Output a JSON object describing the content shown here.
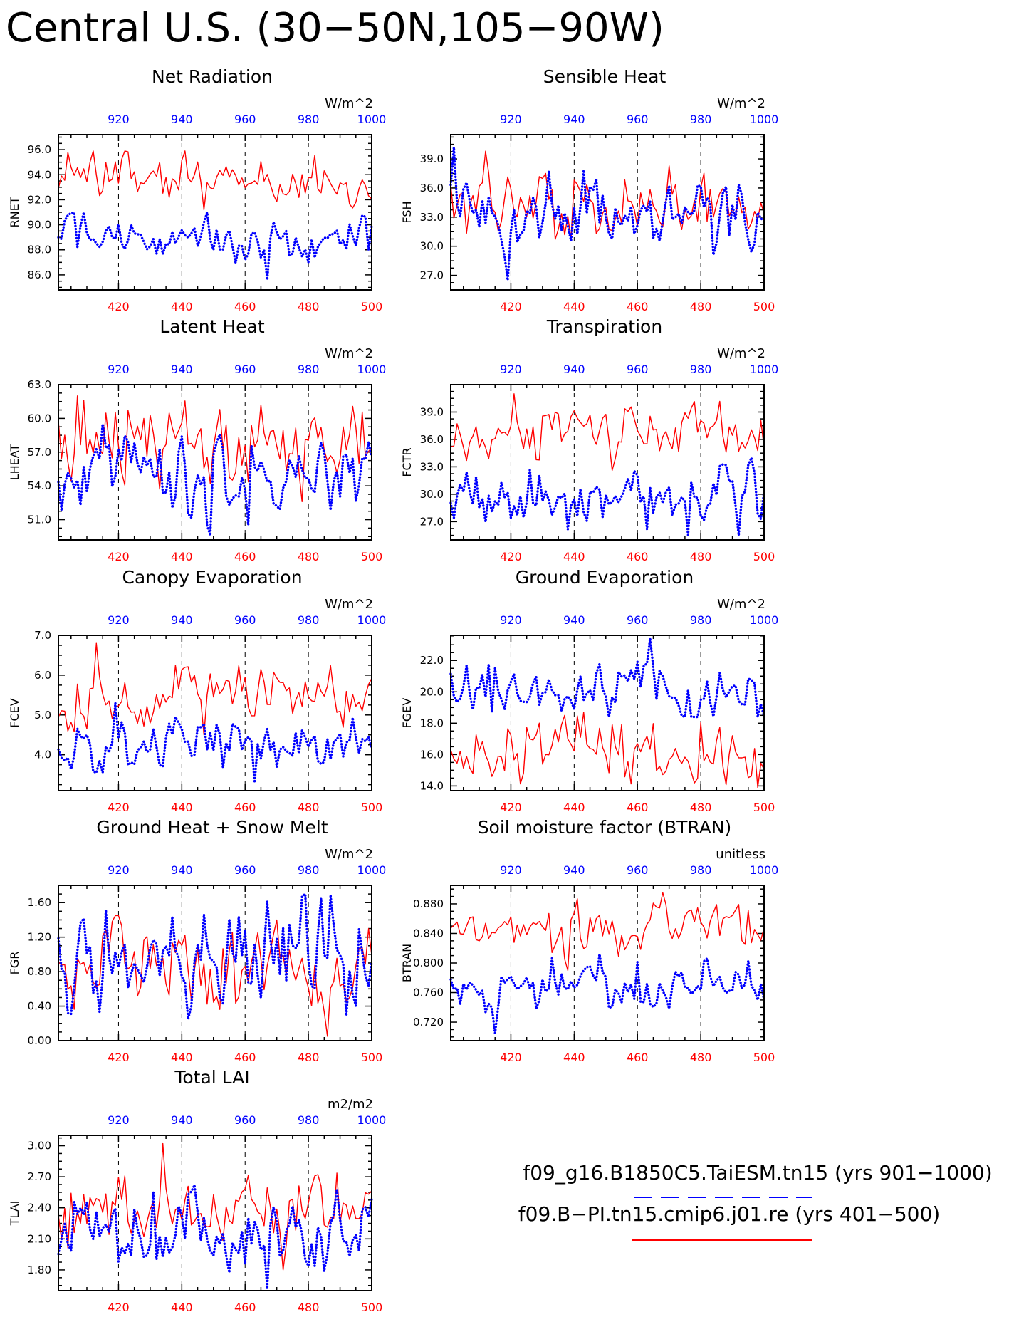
{
  "figure": {
    "title": "Central U.S. (30−50N,105−90W)"
  },
  "colors": {
    "case1": "#0000ff",
    "case2": "#ff0000"
  },
  "legend": {
    "case1_label": "f09_g16.B1850C5.TaiESM.tn15 (yrs 901−1000)",
    "case2_label": "f09.B−PI.tn15.cmip6.j01.re (yrs 401−500)"
  },
  "chart_data": [
    {
      "type": "line",
      "title": "Net Radiation",
      "units": "W/m^2",
      "ylabel": "RNET",
      "ylim": [
        84.8,
        97.2
      ],
      "yticks": [
        86.0,
        88.0,
        90.0,
        92.0,
        94.0,
        96.0
      ],
      "ytick_decimals": 1,
      "x_bottom": {
        "range": [
          401,
          500
        ],
        "ticks": [
          420,
          440,
          460,
          480,
          500
        ]
      },
      "x_top": {
        "range": [
          901,
          1000
        ],
        "ticks": [
          920,
          940,
          960,
          980,
          1000
        ]
      },
      "grid_x": [
        420,
        440,
        460,
        480
      ],
      "series": [
        {
          "case": "case2",
          "style": "solid",
          "stats": {
            "mean": 93.6,
            "sd": 1.05,
            "min": 91.2,
            "max": 95.9
          },
          "seed": 11
        },
        {
          "case": "case1",
          "style": "dotted",
          "stats": {
            "mean": 88.9,
            "sd": 0.95,
            "min": 85.6,
            "max": 91.0
          },
          "seed": 12
        }
      ]
    },
    {
      "type": "line",
      "title": "Sensible Heat",
      "units": "W/m^2",
      "ylabel": "FSH",
      "ylim": [
        25.5,
        41.5
      ],
      "yticks": [
        27.0,
        30.0,
        33.0,
        36.0,
        39.0
      ],
      "ytick_decimals": 1,
      "x_bottom": {
        "range": [
          401,
          500
        ],
        "ticks": [
          420,
          440,
          460,
          480,
          500
        ]
      },
      "x_top": {
        "range": [
          901,
          1000
        ],
        "ticks": [
          920,
          940,
          960,
          980,
          1000
        ]
      },
      "grid_x": [
        420,
        440,
        460,
        480
      ],
      "series": [
        {
          "case": "case2",
          "style": "solid",
          "stats": {
            "mean": 34.2,
            "sd": 1.8,
            "min": 30.7,
            "max": 39.8
          },
          "seed": 21
        },
        {
          "case": "case1",
          "style": "dotted",
          "stats": {
            "mean": 33.3,
            "sd": 2.0,
            "min": 26.5,
            "max": 40.2
          },
          "seed": 22
        }
      ]
    },
    {
      "type": "line",
      "title": "Latent Heat",
      "units": "W/m^2",
      "ylabel": "LHEAT",
      "ylim": [
        49.2,
        63.0
      ],
      "yticks": [
        51.0,
        54.0,
        57.0,
        60.0,
        63.0
      ],
      "ytick_decimals": 1,
      "x_bottom": {
        "range": [
          401,
          500
        ],
        "ticks": [
          420,
          440,
          460,
          480,
          500
        ]
      },
      "x_top": {
        "range": [
          901,
          1000
        ],
        "ticks": [
          920,
          940,
          960,
          980,
          1000
        ]
      },
      "grid_x": [
        420,
        440,
        460,
        480
      ],
      "series": [
        {
          "case": "case2",
          "style": "solid",
          "stats": {
            "mean": 57.8,
            "sd": 1.9,
            "min": 52.6,
            "max": 62.0
          },
          "seed": 31
        },
        {
          "case": "case1",
          "style": "dotted",
          "stats": {
            "mean": 55.0,
            "sd": 2.0,
            "min": 49.6,
            "max": 59.5
          },
          "seed": 32
        }
      ]
    },
    {
      "type": "line",
      "title": "Transpiration",
      "units": "W/m^2",
      "ylabel": "FCTR",
      "ylim": [
        25.0,
        42.0
      ],
      "yticks": [
        27.0,
        30.0,
        33.0,
        36.0,
        39.0
      ],
      "ytick_decimals": 1,
      "x_bottom": {
        "range": [
          401,
          500
        ],
        "ticks": [
          420,
          440,
          460,
          480,
          500
        ]
      },
      "x_top": {
        "range": [
          901,
          1000
        ],
        "ticks": [
          920,
          940,
          960,
          980,
          1000
        ]
      },
      "grid_x": [
        420,
        440,
        460,
        480
      ],
      "series": [
        {
          "case": "case2",
          "style": "solid",
          "stats": {
            "mean": 36.8,
            "sd": 1.6,
            "min": 32.6,
            "max": 41.0
          },
          "seed": 41
        },
        {
          "case": "case1",
          "style": "dotted",
          "stats": {
            "mean": 29.6,
            "sd": 1.7,
            "min": 25.5,
            "max": 34.0
          },
          "seed": 42
        }
      ]
    },
    {
      "type": "line",
      "title": "Canopy Evaporation",
      "units": "W/m^2",
      "ylabel": "FCEV",
      "ylim": [
        3.1,
        7.0
      ],
      "yticks": [
        4.0,
        5.0,
        6.0,
        7.0
      ],
      "ytick_decimals": 1,
      "x_bottom": {
        "range": [
          401,
          500
        ],
        "ticks": [
          420,
          440,
          460,
          480,
          500
        ]
      },
      "x_top": {
        "range": [
          901,
          1000
        ],
        "ticks": [
          920,
          940,
          960,
          980,
          1000
        ]
      },
      "grid_x": [
        420,
        440,
        460,
        480
      ],
      "series": [
        {
          "case": "case2",
          "style": "solid",
          "stats": {
            "mean": 5.45,
            "sd": 0.42,
            "min": 4.5,
            "max": 6.8
          },
          "seed": 51
        },
        {
          "case": "case1",
          "style": "dotted",
          "stats": {
            "mean": 4.25,
            "sd": 0.35,
            "min": 3.3,
            "max": 5.3
          },
          "seed": 52
        }
      ]
    },
    {
      "type": "line",
      "title": "Ground Evaporation",
      "units": "W/m^2",
      "ylabel": "FGEV",
      "ylim": [
        13.7,
        23.6
      ],
      "yticks": [
        14.0,
        16.0,
        18.0,
        20.0,
        22.0
      ],
      "ytick_decimals": 1,
      "x_bottom": {
        "range": [
          401,
          500
        ],
        "ticks": [
          420,
          440,
          460,
          480,
          500
        ]
      },
      "x_top": {
        "range": [
          901,
          1000
        ],
        "ticks": [
          920,
          940,
          960,
          980,
          1000
        ]
      },
      "grid_x": [
        420,
        440,
        460,
        480
      ],
      "series": [
        {
          "case": "case2",
          "style": "solid",
          "stats": {
            "mean": 16.1,
            "sd": 1.1,
            "min": 13.9,
            "max": 18.7
          },
          "seed": 61
        },
        {
          "case": "case1",
          "style": "dotted",
          "stats": {
            "mean": 20.0,
            "sd": 1.0,
            "min": 18.4,
            "max": 23.4
          },
          "seed": 62
        }
      ]
    },
    {
      "type": "line",
      "title": "Ground Heat + Snow Melt",
      "units": "W/m^2",
      "ylabel": "FGR",
      "ylim": [
        0.0,
        1.8
      ],
      "yticks": [
        0.0,
        0.4,
        0.8,
        1.2,
        1.6
      ],
      "ytick_decimals": 2,
      "x_bottom": {
        "range": [
          401,
          500
        ],
        "ticks": [
          420,
          440,
          460,
          480,
          500
        ]
      },
      "x_top": {
        "range": [
          901,
          1000
        ],
        "ticks": [
          920,
          940,
          960,
          980,
          1000
        ]
      },
      "grid_x": [
        420,
        440,
        460,
        480
      ],
      "series": [
        {
          "case": "case2",
          "style": "solid",
          "stats": {
            "mean": 0.85,
            "sd": 0.28,
            "min": 0.05,
            "max": 1.45
          },
          "seed": 71
        },
        {
          "case": "case1",
          "style": "dotted",
          "stats": {
            "mean": 0.95,
            "sd": 0.33,
            "min": 0.25,
            "max": 1.7
          },
          "seed": 72
        }
      ]
    },
    {
      "type": "line",
      "title": "Soil moisture factor (BTRAN)",
      "units": "unitless",
      "ylabel": "BTRAN",
      "ylim": [
        0.695,
        0.905
      ],
      "yticks": [
        0.72,
        0.76,
        0.8,
        0.84,
        0.88
      ],
      "ytick_decimals": 3,
      "x_bottom": {
        "range": [
          401,
          500
        ],
        "ticks": [
          420,
          440,
          460,
          480,
          500
        ]
      },
      "x_top": {
        "range": [
          901,
          1000
        ],
        "ticks": [
          920,
          940,
          960,
          980,
          1000
        ]
      },
      "grid_x": [
        420,
        440,
        460,
        480
      ],
      "series": [
        {
          "case": "case2",
          "style": "solid",
          "stats": {
            "mean": 0.848,
            "sd": 0.018,
            "min": 0.79,
            "max": 0.895
          },
          "seed": 81
        },
        {
          "case": "case1",
          "style": "dotted",
          "stats": {
            "mean": 0.768,
            "sd": 0.017,
            "min": 0.705,
            "max": 0.812
          },
          "seed": 82
        }
      ]
    },
    {
      "type": "line",
      "title": "Total LAI",
      "units": "m2/m2",
      "ylabel": "TLAI",
      "ylim": [
        1.6,
        3.1
      ],
      "yticks": [
        1.8,
        2.1,
        2.4,
        2.7,
        3.0
      ],
      "ytick_decimals": 2,
      "x_bottom": {
        "range": [
          401,
          500
        ],
        "ticks": [
          420,
          440,
          460,
          480,
          500
        ]
      },
      "x_top": {
        "range": [
          901,
          1000
        ],
        "ticks": [
          920,
          940,
          960,
          980,
          1000
        ]
      },
      "grid_x": [
        420,
        440,
        460,
        480
      ],
      "series": [
        {
          "case": "case2",
          "style": "solid",
          "stats": {
            "mean": 2.38,
            "sd": 0.17,
            "min": 1.8,
            "max": 3.02
          },
          "seed": 91
        },
        {
          "case": "case1",
          "style": "dotted",
          "stats": {
            "mean": 2.15,
            "sd": 0.2,
            "min": 1.62,
            "max": 2.62
          },
          "seed": 92
        }
      ]
    }
  ]
}
